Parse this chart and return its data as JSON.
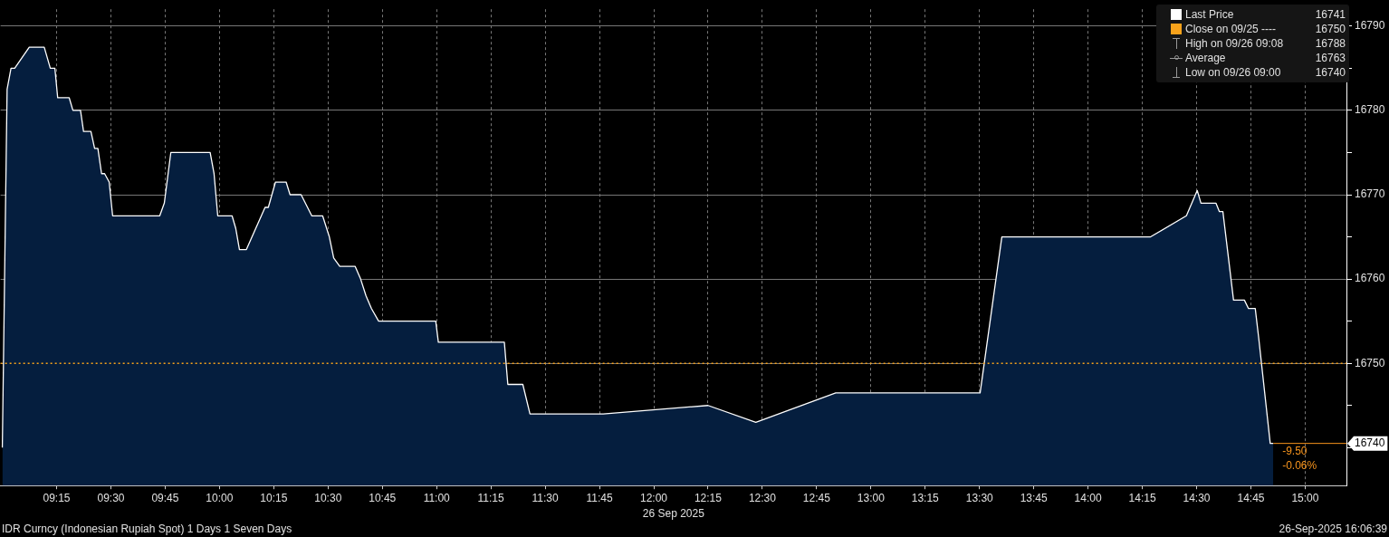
{
  "chart_data": {
    "type": "area",
    "xlabel": "26 Sep 2025",
    "x": [
      9.0,
      9.022,
      9.04,
      9.057,
      9.124,
      9.193,
      9.221,
      9.242,
      9.255,
      9.308,
      9.325,
      9.36,
      9.374,
      9.408,
      9.425,
      9.44,
      9.457,
      9.471,
      9.492,
      9.508,
      9.725,
      9.746,
      9.776,
      9.957,
      9.975,
      9.992,
      10.058,
      10.075,
      10.092,
      10.124,
      10.21,
      10.225,
      10.258,
      10.307,
      10.325,
      10.376,
      10.425,
      10.475,
      10.506,
      10.526,
      10.554,
      10.625,
      10.65,
      10.675,
      10.7,
      10.733,
      10.996,
      11.008,
      11.312,
      11.328,
      11.397,
      11.43,
      11.767,
      12.25,
      12.47,
      12.838,
      13.503,
      13.603,
      14.288,
      14.453,
      14.503,
      14.52,
      14.589,
      14.605,
      14.621,
      14.635,
      14.67,
      14.72,
      14.739,
      14.77,
      14.786,
      14.839,
      14.853
    ],
    "series": [
      {
        "name": "Last Price",
        "color": "#ffffff",
        "values": [
          16740,
          16782.5,
          16785,
          16785,
          16787.5,
          16787.5,
          16785,
          16785,
          16781.5,
          16781.5,
          16780,
          16780,
          16777.5,
          16777.5,
          16775.5,
          16775.5,
          16772.5,
          16772.5,
          16771.5,
          16767.5,
          16767.5,
          16769,
          16775,
          16775,
          16772.5,
          16767.5,
          16767.5,
          16766,
          16763.5,
          16763.5,
          16768.5,
          16768.5,
          16771.5,
          16771.5,
          16770,
          16770,
          16767.5,
          16767.5,
          16765,
          16762.5,
          16761.5,
          16761.5,
          16760,
          16758,
          16756.5,
          16755,
          16755,
          16752.5,
          16752.5,
          16747.5,
          16747.5,
          16744,
          16744,
          16745,
          16743,
          16746.5,
          16746.5,
          16765,
          16765,
          16767.5,
          16770.5,
          16769,
          16769,
          16768,
          16768,
          16765,
          16757.5,
          16757.5,
          16756.5,
          16756.5,
          16753,
          16740.5,
          16740.5
        ]
      }
    ],
    "xlim": [
      8.992,
      15.19
    ],
    "xticks": [
      {
        "value": 9.25,
        "label": "09:15"
      },
      {
        "value": 9.5,
        "label": "09:30"
      },
      {
        "value": 9.75,
        "label": "09:45"
      },
      {
        "value": 10,
        "label": "10:00"
      },
      {
        "value": 10.25,
        "label": "10:15"
      },
      {
        "value": 10.5,
        "label": "10:30"
      },
      {
        "value": 10.75,
        "label": "10:45"
      },
      {
        "value": 11,
        "label": "11:00"
      },
      {
        "value": 11.25,
        "label": "11:15"
      },
      {
        "value": 11.5,
        "label": "11:30"
      },
      {
        "value": 11.75,
        "label": "11:45"
      },
      {
        "value": 12,
        "label": "12:00"
      },
      {
        "value": 12.25,
        "label": "12:15"
      },
      {
        "value": 12.5,
        "label": "12:30"
      },
      {
        "value": 12.75,
        "label": "12:45"
      },
      {
        "value": 13,
        "label": "13:00"
      },
      {
        "value": 13.25,
        "label": "13:15"
      },
      {
        "value": 13.5,
        "label": "13:30"
      },
      {
        "value": 13.75,
        "label": "13:45"
      },
      {
        "value": 14,
        "label": "14:00"
      },
      {
        "value": 14.25,
        "label": "14:15"
      },
      {
        "value": 14.5,
        "label": "14:30"
      },
      {
        "value": 14.75,
        "label": "14:45"
      },
      {
        "value": 15,
        "label": "15:00"
      }
    ],
    "ylim": [
      16735.5,
      16792
    ],
    "yticks": [
      {
        "value": 16740,
        "label": null
      },
      {
        "value": 16745,
        "label": null
      },
      16750,
      {
        "value": 16755,
        "label": null
      },
      16760,
      {
        "value": 16765,
        "label": null
      },
      16770,
      {
        "value": 16775,
        "label": null
      },
      16780,
      {
        "value": 16785,
        "label": null
      },
      16790
    ],
    "grid": true,
    "legend": "top right",
    "ref_lines": [
      {
        "axis": "y",
        "value": 16750,
        "label": "Close on 09/25 ----",
        "color": "#f7a21b",
        "line_style": "dotted"
      },
      {
        "axis": "y",
        "value": 16740.5,
        "label": "16740",
        "color": "#f7941d",
        "line_style": "solid"
      }
    ],
    "annotations": [
      "16741",
      "16750",
      "High on 09/26 09:08",
      "16788",
      "Average",
      "16763",
      "Low on 09/26 09:00",
      "16740",
      "-9.50",
      "-0.06%",
      "IDR Curncy (Indonesian Rupiah Spot) 1 Days 1 Seven Days",
      "26-Sep-2025 16:06:39"
    ]
  }
}
